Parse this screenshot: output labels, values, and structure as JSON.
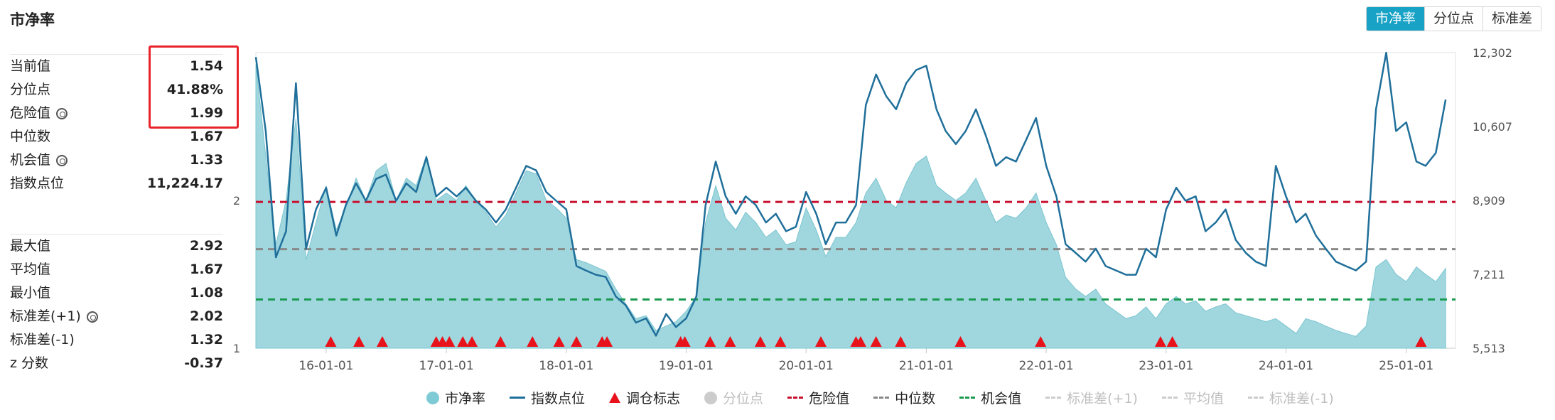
{
  "page": {
    "title": "市净率"
  },
  "toggle": {
    "items": [
      "市净率",
      "分位点",
      "标准差"
    ],
    "active": 0
  },
  "stats_top": [
    {
      "label": "当前值",
      "value": "1.54",
      "gear": false
    },
    {
      "label": "分位点",
      "value": "41.88%",
      "gear": false
    },
    {
      "label": "危险值",
      "value": "1.99",
      "gear": true
    },
    {
      "label": "中位数",
      "value": "1.67",
      "gear": false
    },
    {
      "label": "机会值",
      "value": "1.33",
      "gear": true
    },
    {
      "label": "指数点位",
      "value": "11,224.17",
      "gear": false
    }
  ],
  "stats_bottom": [
    {
      "label": "最大值",
      "value": "2.92",
      "gear": false
    },
    {
      "label": "平均值",
      "value": "1.67",
      "gear": false
    },
    {
      "label": "最小值",
      "value": "1.08",
      "gear": false
    },
    {
      "label": "标准差(+1)",
      "value": "2.02",
      "gear": true
    },
    {
      "label": "标准差(-1)",
      "value": "1.32",
      "gear": false
    },
    {
      "label": "z 分数",
      "value": "-0.37",
      "gear": false
    }
  ],
  "legend": [
    {
      "label": "市净率",
      "type": "dot",
      "color": "#7ecbd6",
      "off": false
    },
    {
      "label": "指数点位",
      "type": "line",
      "color": "#1f6f9a",
      "off": false
    },
    {
      "label": "调仓标志",
      "type": "tri",
      "color": "#e8121b",
      "off": false
    },
    {
      "label": "分位点",
      "type": "dot",
      "color": "#cccccc",
      "off": true
    },
    {
      "label": "危险值",
      "type": "dash",
      "color": "#c8102e",
      "off": false
    },
    {
      "label": "中位数",
      "type": "dash",
      "color": "#888888",
      "off": false
    },
    {
      "label": "机会值",
      "type": "dash",
      "color": "#1a9a50",
      "off": false
    },
    {
      "label": "标准差(+1)",
      "type": "dash",
      "color": "#cccccc",
      "off": true
    },
    {
      "label": "平均值",
      "type": "dash",
      "color": "#cccccc",
      "off": true
    },
    {
      "label": "标准差(-1)",
      "type": "dash",
      "color": "#cccccc",
      "off": true
    }
  ],
  "chart_data": {
    "type": "area",
    "x_range": [
      "2015-06-01",
      "2025-05-31"
    ],
    "x_ticks": [
      {
        "date": "2016-01-01",
        "label": "16-01-01"
      },
      {
        "date": "2017-01-01",
        "label": "17-01-01"
      },
      {
        "date": "2018-01-01",
        "label": "18-01-01"
      },
      {
        "date": "2019-01-01",
        "label": "19-01-01"
      },
      {
        "date": "2020-01-01",
        "label": "20-01-01"
      },
      {
        "date": "2021-01-01",
        "label": "21-01-01"
      },
      {
        "date": "2022-01-01",
        "label": "22-01-01"
      },
      {
        "date": "2023-01-01",
        "label": "23-01-01"
      },
      {
        "date": "2024-01-01",
        "label": "24-01-01"
      },
      {
        "date": "2025-01-01",
        "label": "25-01-01"
      }
    ],
    "y_left": {
      "min": 1,
      "max": 3,
      "ticks": [
        "1",
        "2"
      ]
    },
    "y_right": {
      "min": 5513,
      "max": 12302,
      "ticks": [
        "5,513",
        "7,211",
        "8,909",
        "10,607",
        "12,302"
      ]
    },
    "reference_lines": [
      {
        "name": "危险值",
        "value": 1.99,
        "color": "#c8102e"
      },
      {
        "name": "中位数",
        "value": 1.67,
        "color": "#888888"
      },
      {
        "name": "机会值",
        "value": 1.33,
        "color": "#1a9a50"
      }
    ],
    "series": [
      {
        "name": "市净率",
        "color": "#8fd0d9",
        "x": [
          "2015-06-01",
          "2015-07-01",
          "2015-08-01",
          "2015-09-01",
          "2015-10-01",
          "2015-11-01",
          "2015-12-01",
          "2016-01-01",
          "2016-02-01",
          "2016-03-01",
          "2016-04-01",
          "2016-05-01",
          "2016-06-01",
          "2016-07-01",
          "2016-08-01",
          "2016-09-01",
          "2016-10-01",
          "2016-11-01",
          "2016-12-01",
          "2017-01-01",
          "2017-02-01",
          "2017-03-01",
          "2017-04-01",
          "2017-05-01",
          "2017-06-01",
          "2017-07-01",
          "2017-08-01",
          "2017-09-01",
          "2017-10-01",
          "2017-11-01",
          "2017-12-01",
          "2018-01-01",
          "2018-02-01",
          "2018-03-01",
          "2018-04-01",
          "2018-05-01",
          "2018-06-01",
          "2018-07-01",
          "2018-08-01",
          "2018-09-01",
          "2018-10-01",
          "2018-11-01",
          "2018-12-01",
          "2019-01-01",
          "2019-02-01",
          "2019-03-01",
          "2019-04-01",
          "2019-05-01",
          "2019-06-01",
          "2019-07-01",
          "2019-08-01",
          "2019-09-01",
          "2019-10-01",
          "2019-11-01",
          "2019-12-01",
          "2020-01-01",
          "2020-02-01",
          "2020-03-01",
          "2020-04-01",
          "2020-05-01",
          "2020-06-01",
          "2020-07-01",
          "2020-08-01",
          "2020-09-01",
          "2020-10-01",
          "2020-11-01",
          "2020-12-01",
          "2021-01-01",
          "2021-02-01",
          "2021-03-01",
          "2021-04-01",
          "2021-05-01",
          "2021-06-01",
          "2021-07-01",
          "2021-08-01",
          "2021-09-01",
          "2021-10-01",
          "2021-11-01",
          "2021-12-01",
          "2022-01-01",
          "2022-02-01",
          "2022-03-01",
          "2022-04-01",
          "2022-05-01",
          "2022-06-01",
          "2022-07-01",
          "2022-08-01",
          "2022-09-01",
          "2022-10-01",
          "2022-11-01",
          "2022-12-01",
          "2023-01-01",
          "2023-02-01",
          "2023-03-01",
          "2023-04-01",
          "2023-05-01",
          "2023-06-01",
          "2023-07-01",
          "2023-08-01",
          "2023-09-01",
          "2023-10-01",
          "2023-11-01",
          "2023-12-01",
          "2024-01-01",
          "2024-02-01",
          "2024-03-01",
          "2024-04-01",
          "2024-05-01",
          "2024-06-01",
          "2024-07-01",
          "2024-08-01",
          "2024-09-01",
          "2024-10-01",
          "2024-11-01",
          "2024-12-01",
          "2025-01-01",
          "2025-02-01",
          "2025-03-01",
          "2025-04-01",
          "2025-05-01"
        ],
        "values": [
          2.92,
          2.3,
          1.7,
          2.0,
          2.55,
          1.6,
          1.85,
          2.1,
          1.8,
          1.95,
          2.15,
          2.0,
          2.2,
          2.25,
          2.0,
          2.15,
          2.1,
          2.3,
          2.0,
          2.05,
          2.0,
          2.1,
          2.0,
          1.92,
          1.82,
          1.9,
          2.05,
          2.2,
          2.18,
          2.0,
          1.95,
          1.88,
          1.6,
          1.58,
          1.55,
          1.52,
          1.4,
          1.3,
          1.2,
          1.22,
          1.12,
          1.15,
          1.18,
          1.25,
          1.35,
          1.85,
          2.1,
          1.88,
          1.8,
          1.92,
          1.85,
          1.75,
          1.8,
          1.7,
          1.72,
          1.95,
          1.8,
          1.62,
          1.75,
          1.75,
          1.85,
          2.05,
          2.15,
          2.0,
          1.95,
          2.12,
          2.25,
          2.3,
          2.1,
          2.05,
          2.0,
          2.05,
          2.15,
          2.0,
          1.85,
          1.9,
          1.88,
          1.95,
          2.05,
          1.85,
          1.7,
          1.48,
          1.4,
          1.35,
          1.4,
          1.3,
          1.25,
          1.2,
          1.22,
          1.28,
          1.2,
          1.3,
          1.35,
          1.3,
          1.32,
          1.25,
          1.28,
          1.3,
          1.24,
          1.22,
          1.2,
          1.18,
          1.2,
          1.15,
          1.1,
          1.2,
          1.18,
          1.15,
          1.12,
          1.1,
          1.08,
          1.15,
          1.55,
          1.6,
          1.5,
          1.45,
          1.55,
          1.5,
          1.45,
          1.54
        ]
      },
      {
        "name": "指数点位",
        "color": "#1f6f9a",
        "x": [
          "2015-06-01",
          "2015-07-01",
          "2015-08-01",
          "2015-09-01",
          "2015-10-01",
          "2015-11-01",
          "2015-12-01",
          "2016-01-01",
          "2016-02-01",
          "2016-03-01",
          "2016-04-01",
          "2016-05-01",
          "2016-06-01",
          "2016-07-01",
          "2016-08-01",
          "2016-09-01",
          "2016-10-01",
          "2016-11-01",
          "2016-12-01",
          "2017-01-01",
          "2017-02-01",
          "2017-03-01",
          "2017-04-01",
          "2017-05-01",
          "2017-06-01",
          "2017-07-01",
          "2017-08-01",
          "2017-09-01",
          "2017-10-01",
          "2017-11-01",
          "2017-12-01",
          "2018-01-01",
          "2018-02-01",
          "2018-03-01",
          "2018-04-01",
          "2018-05-01",
          "2018-06-01",
          "2018-07-01",
          "2018-08-01",
          "2018-09-01",
          "2018-10-01",
          "2018-11-01",
          "2018-12-01",
          "2019-01-01",
          "2019-02-01",
          "2019-03-01",
          "2019-04-01",
          "2019-05-01",
          "2019-06-01",
          "2019-07-01",
          "2019-08-01",
          "2019-09-01",
          "2019-10-01",
          "2019-11-01",
          "2019-12-01",
          "2020-01-01",
          "2020-02-01",
          "2020-03-01",
          "2020-04-01",
          "2020-05-01",
          "2020-06-01",
          "2020-07-01",
          "2020-08-01",
          "2020-09-01",
          "2020-10-01",
          "2020-11-01",
          "2020-12-01",
          "2021-01-01",
          "2021-02-01",
          "2021-03-01",
          "2021-04-01",
          "2021-05-01",
          "2021-06-01",
          "2021-07-01",
          "2021-08-01",
          "2021-09-01",
          "2021-10-01",
          "2021-11-01",
          "2021-12-01",
          "2022-01-01",
          "2022-02-01",
          "2022-03-01",
          "2022-04-01",
          "2022-05-01",
          "2022-06-01",
          "2022-07-01",
          "2022-08-01",
          "2022-09-01",
          "2022-10-01",
          "2022-11-01",
          "2022-12-01",
          "2023-01-01",
          "2023-02-01",
          "2023-03-01",
          "2023-04-01",
          "2023-05-01",
          "2023-06-01",
          "2023-07-01",
          "2023-08-01",
          "2023-09-01",
          "2023-10-01",
          "2023-11-01",
          "2023-12-01",
          "2024-01-01",
          "2024-02-01",
          "2024-03-01",
          "2024-04-01",
          "2024-05-01",
          "2024-06-01",
          "2024-07-01",
          "2024-08-01",
          "2024-09-01",
          "2024-10-01",
          "2024-11-01",
          "2024-12-01",
          "2025-01-01",
          "2025-02-01",
          "2025-03-01",
          "2025-04-01",
          "2025-05-01"
        ],
        "values": [
          12200,
          10500,
          7600,
          8200,
          11600,
          7800,
          8700,
          9200,
          8100,
          8800,
          9300,
          8900,
          9400,
          9500,
          8900,
          9300,
          9100,
          9900,
          9000,
          9200,
          9000,
          9200,
          8900,
          8700,
          8400,
          8700,
          9200,
          9700,
          9600,
          9100,
          8900,
          8700,
          7400,
          7300,
          7200,
          7150,
          6700,
          6500,
          6100,
          6200,
          5800,
          6300,
          6000,
          6200,
          6700,
          8800,
          9800,
          9000,
          8600,
          9000,
          8800,
          8400,
          8600,
          8200,
          8300,
          9100,
          8600,
          7900,
          8400,
          8400,
          8800,
          11100,
          11800,
          11300,
          11000,
          11600,
          11900,
          12000,
          11000,
          10500,
          10200,
          10500,
          11000,
          10400,
          9700,
          9900,
          9800,
          10300,
          10800,
          9700,
          9000,
          7900,
          7700,
          7500,
          7800,
          7400,
          7300,
          7200,
          7200,
          7800,
          7600,
          8700,
          9200,
          8900,
          9000,
          8200,
          8400,
          8700,
          8000,
          7700,
          7500,
          7400,
          9700,
          9000,
          8400,
          8600,
          8100,
          7800,
          7500,
          7400,
          7300,
          7500,
          11000,
          12300,
          10500,
          10700,
          9800,
          9700,
          10000,
          11224
        ]
      }
    ],
    "markers": {
      "name": "调仓标志",
      "dates": [
        "2016-01-15",
        "2016-04-10",
        "2016-06-20",
        "2016-12-01",
        "2016-12-20",
        "2017-01-10",
        "2017-02-20",
        "2017-03-20",
        "2017-06-15",
        "2017-09-20",
        "2017-12-10",
        "2018-02-01",
        "2018-04-20",
        "2018-05-05",
        "2018-12-15",
        "2018-12-28",
        "2019-03-15",
        "2019-05-15",
        "2019-08-15",
        "2019-10-15",
        "2020-02-15",
        "2020-06-01",
        "2020-06-15",
        "2020-08-01",
        "2020-10-15",
        "2021-04-15",
        "2021-12-15",
        "2022-12-15",
        "2023-01-20",
        "2025-02-15"
      ]
    }
  }
}
